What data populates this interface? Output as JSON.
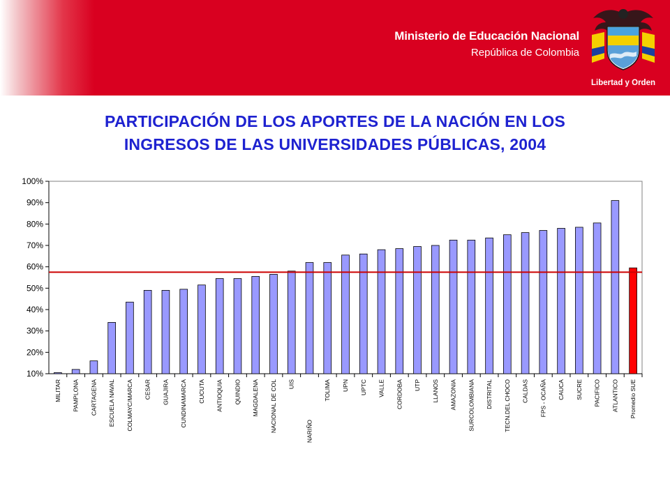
{
  "header": {
    "ministry": "Ministerio de Educación Nacional",
    "country": "República de Colombia",
    "motto": "Libertad y Orden"
  },
  "title": {
    "line1": "PARTICIPACIÓN DE LOS APORTES DE LA NACIÓN EN LOS",
    "line2": "INGRESOS DE LAS UNIVERSIDADES PÚBLICAS, 2004"
  },
  "colors": {
    "header_red": "#d90020",
    "title_blue": "#1e22d0",
    "bar": "#9999ff",
    "highlight_bar": "#ff0000",
    "reference_line": "#cc0000"
  },
  "chart_data": {
    "type": "bar",
    "ylim": [
      10,
      100
    ],
    "yticks": [
      "10%",
      "20%",
      "30%",
      "40%",
      "50%",
      "60%",
      "70%",
      "80%",
      "90%",
      "100%"
    ],
    "reference_line": 57.5,
    "highlight_category": "Promedio SUE",
    "categories": [
      "MILITAR",
      "PAMPLONA",
      "CARTAGENA",
      "ESCUELA NAVAL",
      "COLMAYC/MARCA",
      "CESAR",
      "GUAJIRA",
      "CUNDINAMARCA",
      "CUCUTA",
      "ANTIOQUIA",
      "QUINDIO",
      "MAGDALENA",
      "NACIONAL DE COL",
      "UIS",
      "NARIÑO",
      "TOLIMA",
      "UPN",
      "UPTC",
      "VALLE",
      "CORDOBA",
      "UTP",
      "LLANOS",
      "AMAZONIA",
      "SURCOLOMBIANA",
      "DISTRITAL",
      "TECN.DEL CHOCO",
      "CALDAS",
      "FPS - OCAÑA",
      "CAUCA",
      "SUCRE",
      "PACIFICO",
      "ATLANTICO",
      "Promedio SUE"
    ],
    "values": [
      10.5,
      12,
      16,
      34,
      43.5,
      49,
      49,
      49.5,
      51.5,
      54.5,
      54.5,
      55.5,
      56.5,
      58,
      62,
      62,
      65.5,
      66,
      68,
      68.5,
      69.5,
      70,
      72.5,
      72.5,
      73.5,
      75,
      76,
      77,
      78,
      78.5,
      80.5,
      91,
      59.5
    ],
    "title": "PARTICIPACIÓN DE LOS APORTES DE LA NACIÓN EN LOS INGRESOS DE LAS UNIVERSIDADES PÚBLICAS, 2004",
    "xlabel": "",
    "ylabel": "",
    "grid": false
  }
}
